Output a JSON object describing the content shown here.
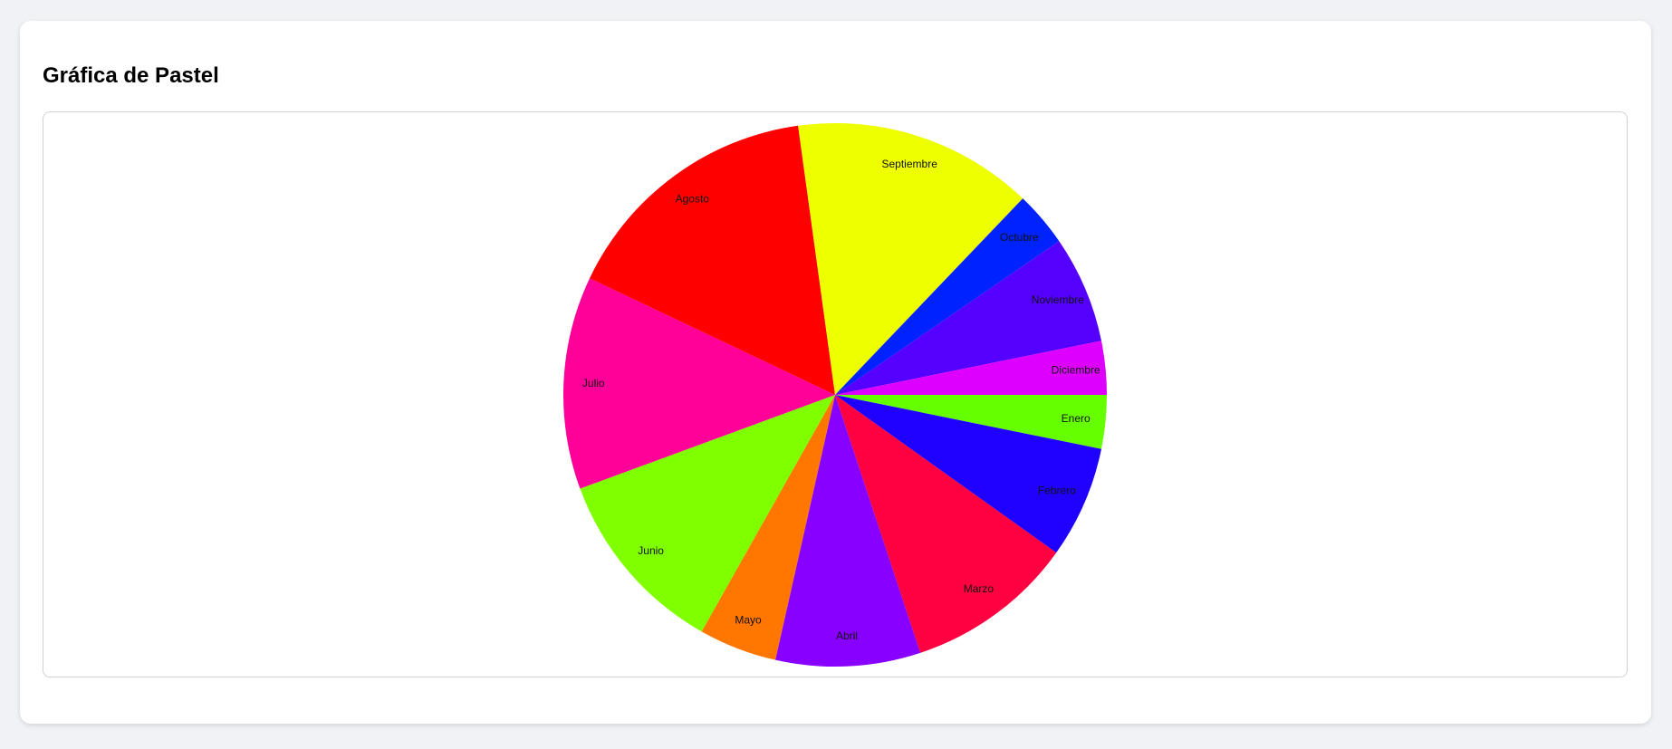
{
  "page": {
    "title": "Gráfica de Pastel"
  },
  "chart_data": {
    "type": "pie",
    "title": "Gráfica de Pastel",
    "start_angle_deg": 0,
    "direction": "clockwise",
    "slices": [
      {
        "label": "Enero",
        "value": 3.3,
        "color": "#66ff00"
      },
      {
        "label": "Febrero",
        "value": 6.9,
        "color": "#1f00ff"
      },
      {
        "label": "Marzo",
        "value": 10.4,
        "color": "#ff0040"
      },
      {
        "label": "Abril",
        "value": 8.9,
        "color": "#8800ff"
      },
      {
        "label": "Mayo",
        "value": 4.8,
        "color": "#ff7700"
      },
      {
        "label": "Junio",
        "value": 11.6,
        "color": "#80ff00"
      },
      {
        "label": "Julio",
        "value": 13.1,
        "color": "#ff0099"
      },
      {
        "label": "Agosto",
        "value": 16.3,
        "color": "#ff0000"
      },
      {
        "label": "Septiembre",
        "value": 14.8,
        "color": "#eeff00"
      },
      {
        "label": "Octubre",
        "value": 3.4,
        "color": "#0022ff"
      },
      {
        "label": "Noviembre",
        "value": 6.6,
        "color": "#5500ff"
      },
      {
        "label": "Diciembre",
        "value": 3.3,
        "color": "#dd00ff"
      }
    ]
  }
}
